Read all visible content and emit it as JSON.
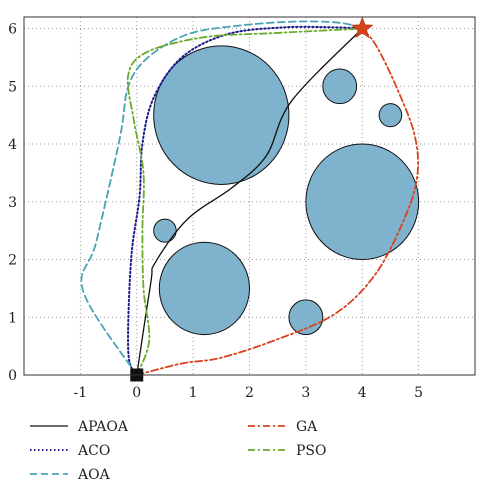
{
  "chart_data": {
    "type": "path-planning",
    "title": "",
    "xlabel": "",
    "ylabel": "",
    "xlim": [
      -2,
      6
    ],
    "ylim": [
      0,
      6.2
    ],
    "x_ticks": [
      -1,
      0,
      1,
      2,
      3,
      4,
      5
    ],
    "y_ticks": [
      0,
      1,
      2,
      3,
      4,
      5,
      6
    ],
    "grid": true,
    "start": {
      "x": 0,
      "y": 0,
      "marker": "square",
      "color": "#111111"
    },
    "goal": {
      "x": 4,
      "y": 6,
      "marker": "star",
      "color": "#d9421c"
    },
    "obstacles": [
      {
        "x": 1.5,
        "y": 4.5,
        "r": 1.2
      },
      {
        "x": 4.0,
        "y": 3.0,
        "r": 1.0
      },
      {
        "x": 1.2,
        "y": 1.5,
        "r": 0.8
      },
      {
        "x": 3.6,
        "y": 5.0,
        "r": 0.3
      },
      {
        "x": 4.5,
        "y": 4.5,
        "r": 0.2
      },
      {
        "x": 0.5,
        "y": 2.5,
        "r": 0.2
      },
      {
        "x": 3.0,
        "y": 1.0,
        "r": 0.3
      }
    ],
    "obstacle_fill": "#7fb3cd",
    "series": [
      {
        "name": "APAOA",
        "color": "#111111",
        "style": "solid",
        "points": [
          [
            0,
            0
          ],
          [
            0.25,
            1.6
          ],
          [
            0.33,
            1.95
          ],
          [
            0.9,
            2.7
          ],
          [
            1.7,
            3.25
          ],
          [
            2.3,
            3.8
          ],
          [
            2.75,
            4.75
          ],
          [
            4,
            6
          ]
        ]
      },
      {
        "name": "ACO",
        "color": "#1a1a8c",
        "style": "dotted",
        "points": [
          [
            0,
            0
          ],
          [
            -0.15,
            0.4
          ],
          [
            -0.1,
            2.0
          ],
          [
            0.05,
            3.1
          ],
          [
            0.1,
            4.0
          ],
          [
            0.3,
            4.8
          ],
          [
            0.8,
            5.5
          ],
          [
            1.6,
            5.9
          ],
          [
            2.6,
            6.02
          ],
          [
            3.5,
            6.02
          ],
          [
            4,
            6
          ]
        ]
      },
      {
        "name": "AOA",
        "color": "#4aa3b5",
        "style": "dashed",
        "points": [
          [
            0,
            0
          ],
          [
            -0.95,
            1.45
          ],
          [
            -0.72,
            2.3
          ],
          [
            -0.3,
            4.1
          ],
          [
            -0.15,
            5.0
          ],
          [
            0.2,
            5.5
          ],
          [
            0.9,
            5.9
          ],
          [
            1.8,
            6.05
          ],
          [
            2.8,
            6.12
          ],
          [
            3.6,
            6.1
          ],
          [
            4,
            6
          ]
        ]
      },
      {
        "name": "GA",
        "color": "#d9421c",
        "style": "dashdot",
        "points": [
          [
            0,
            0
          ],
          [
            0.8,
            0.2
          ],
          [
            1.5,
            0.3
          ],
          [
            2.5,
            0.62
          ],
          [
            3.5,
            1.05
          ],
          [
            4.2,
            1.7
          ],
          [
            4.7,
            2.6
          ],
          [
            4.97,
            3.4
          ],
          [
            4.93,
            4.15
          ],
          [
            4.6,
            5.0
          ],
          [
            4.25,
            5.7
          ],
          [
            4,
            6
          ]
        ]
      },
      {
        "name": "PSO",
        "color": "#6aaa2a",
        "style": "dashdot",
        "points": [
          [
            0,
            0
          ],
          [
            0.22,
            0.6
          ],
          [
            0.12,
            1.5
          ],
          [
            0.1,
            2.5
          ],
          [
            0.12,
            3.5
          ],
          [
            -0.05,
            4.4
          ],
          [
            -0.15,
            5.2
          ],
          [
            0.2,
            5.6
          ],
          [
            1.2,
            5.85
          ],
          [
            2.4,
            5.92
          ],
          [
            3.4,
            5.97
          ],
          [
            4,
            6
          ]
        ]
      }
    ],
    "legend": {
      "placement": "bottom",
      "columns": 2
    }
  }
}
